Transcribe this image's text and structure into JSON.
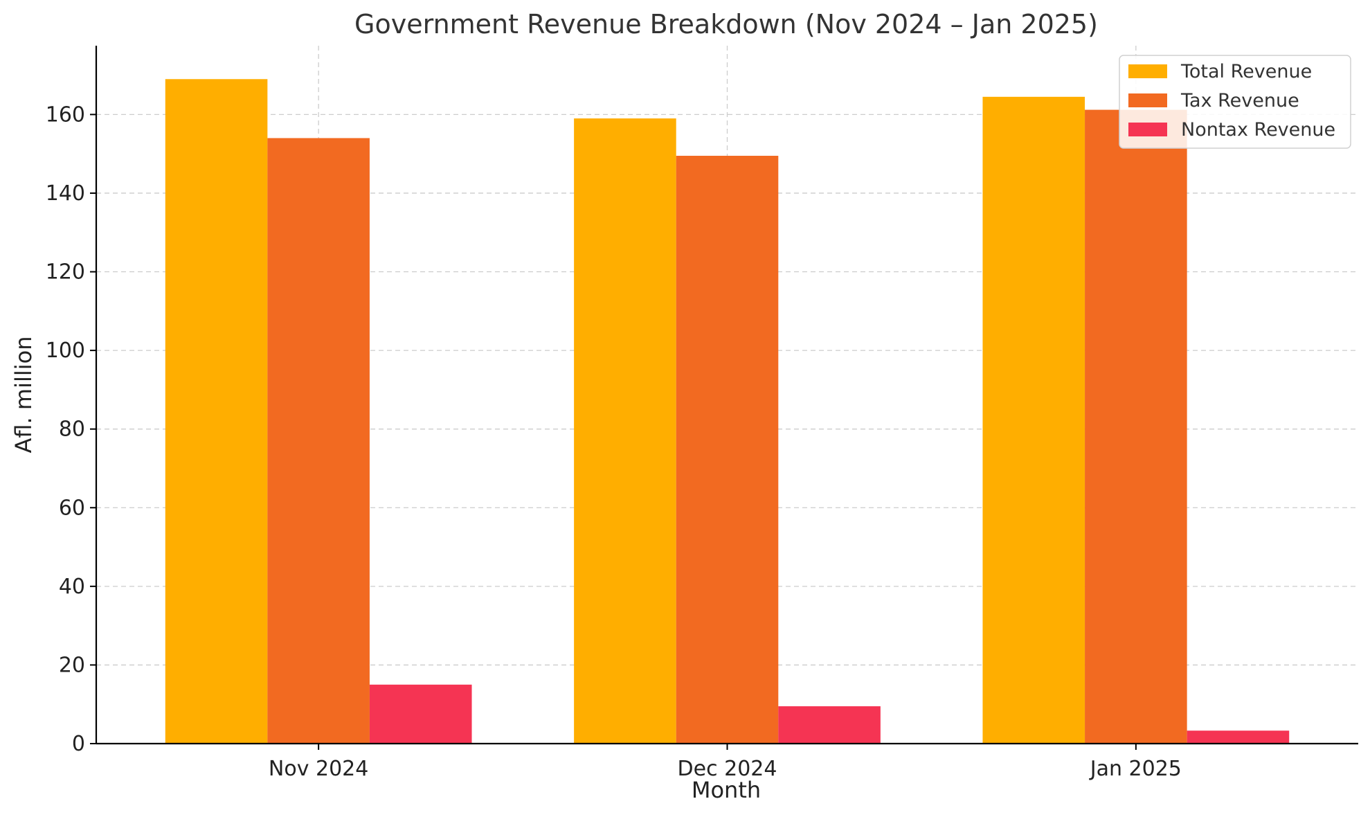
{
  "chart_data": {
    "type": "bar",
    "title": "Government Revenue Breakdown (Nov 2024 – Jan 2025)",
    "xlabel": "Month",
    "ylabel": "Afl. million",
    "categories": [
      "Nov 2024",
      "Dec 2024",
      "Jan 2025"
    ],
    "series": [
      {
        "name": "Total Revenue",
        "color": "#FFAE00",
        "values": [
          169.0,
          159.0,
          164.5
        ]
      },
      {
        "name": "Tax Revenue",
        "color": "#F26A21",
        "values": [
          154.0,
          149.5,
          161.2
        ]
      },
      {
        "name": "Nontax Revenue",
        "color": "#F53453",
        "values": [
          15.0,
          9.5,
          3.3
        ]
      }
    ],
    "ylim": [
      0,
      177.5
    ],
    "yticks": [
      0,
      20,
      40,
      60,
      80,
      100,
      120,
      140,
      160
    ],
    "grid": true,
    "legend_position": "top-right"
  }
}
